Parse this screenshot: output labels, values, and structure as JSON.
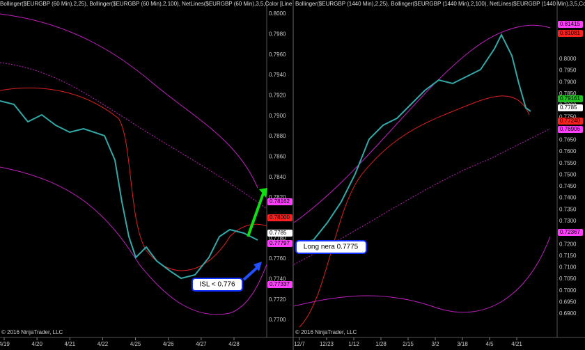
{
  "left_panel": {
    "header": "Bollinger($EURGBP (60 Min),2,25), Bollinger($EURGBP (60 Min),2,100), NetLines($EURGBP (60 Min),3,5,Color [Line",
    "price_axis": [
      "0.8000",
      "0.7980",
      "0.7960",
      "0.7940",
      "0.7920",
      "0.7900",
      "0.7880",
      "0.7860",
      "0.7840",
      "0.7820",
      "0.7800",
      "0.7780",
      "0.7760",
      "0.7740",
      "0.7720",
      "0.7700"
    ],
    "dates": [
      "4/19",
      "4/20",
      "4/21",
      "4/22",
      "4/25",
      "4/26",
      "4/27",
      "4/28"
    ],
    "price_tags": [
      {
        "text": "0.78162",
        "color": "#ff40ff"
      },
      {
        "text": "0.78000",
        "color": "#ff2020"
      },
      {
        "text": "0.7785",
        "color": "#ffffff"
      },
      {
        "text": "0.77797",
        "color": "#ff40ff"
      },
      {
        "text": "0.77337",
        "color": "#ff40ff"
      }
    ],
    "annotation": "ISL < 0.776",
    "copyright": "© 2016 NinjaTrader, LLC"
  },
  "right_panel": {
    "header": "Bollinger($EURGBP (1440 Min),2,25), Bollinger($EURGBP (1440 Min),2,100), NetLines($EURGBP (1440 Min),3,5,Co",
    "price_axis": [
      "0.8000",
      "0.7950",
      "0.7900",
      "0.7850",
      "0.7800",
      "0.7750",
      "0.7700",
      "0.7650",
      "0.7600",
      "0.7550",
      "0.7500",
      "0.7450",
      "0.7400",
      "0.7350",
      "0.7300",
      "0.7250",
      "0.7200",
      "0.7150",
      "0.7100",
      "0.7050",
      "0.7000",
      "0.6950",
      "0.6900"
    ],
    "dates": [
      "12/7",
      "12/23",
      "1/12",
      "1/28",
      "2/15",
      "3/2",
      "3/18",
      "4/5",
      "4/21"
    ],
    "price_tags": [
      {
        "text": "0.81415",
        "color": "#ff40ff"
      },
      {
        "text": "0.81081",
        "color": "#ff2020"
      },
      {
        "text": "0.79161",
        "color": "#20c020"
      },
      {
        "text": "0.7785",
        "color": "#ffffff"
      },
      {
        "text": "0.77240",
        "color": "#ff2020"
      },
      {
        "text": "0.76906",
        "color": "#ff40ff"
      },
      {
        "text": "0.72367",
        "color": "#ff40ff"
      }
    ],
    "annotation": "Long nera 0.7775",
    "copyright": "© 2016 NinjaTrader, LLC"
  }
}
